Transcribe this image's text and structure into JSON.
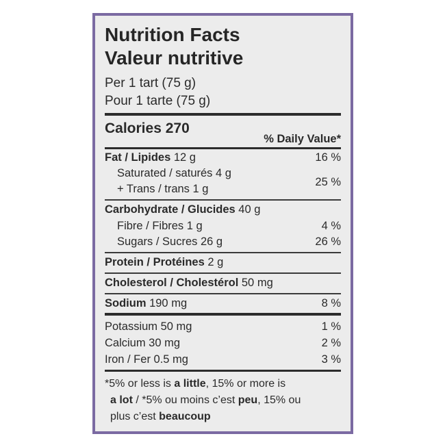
{
  "label": {
    "title_en": "Nutrition Facts",
    "title_fr": "Valeur nutritive",
    "serving_en": "Per 1 tart (75 g)",
    "serving_fr": "Pour 1 tarte (75 g)",
    "calories_label": "Calories 270",
    "daily_value_header": "% Daily Value*",
    "fat": {
      "name": "Fat / Lipides",
      "amount": " 12 g",
      "pct": "16 %"
    },
    "saturated": {
      "text": "Saturated / saturés 4 g"
    },
    "trans": {
      "text": "+ Trans / trans 1 g",
      "pct": "25 %"
    },
    "carbohydrate": {
      "name": "Carbohydrate / Glucides",
      "amount": " 40 g"
    },
    "fibre": {
      "text": "Fibre / Fibres 1 g",
      "pct": "4 %"
    },
    "sugars": {
      "text": "Sugars / Sucres 26 g",
      "pct": "26 %"
    },
    "protein": {
      "name": "Protein / Protéines",
      "amount": " 2 g"
    },
    "cholesterol": {
      "name": "Cholesterol / Cholestérol",
      "amount": " 50 mg"
    },
    "sodium": {
      "name": "Sodium",
      "amount": " 190 mg",
      "pct": "8 %"
    },
    "potassium": {
      "text": "Potassium 50 mg",
      "pct": "1 %"
    },
    "calcium": {
      "text": "Calcium 30 mg",
      "pct": "2 %"
    },
    "iron": {
      "text": "Iron / Fer 0.5 mg",
      "pct": "3 %"
    },
    "footnote": {
      "p1": "*5% or less is ",
      "b1": "a little",
      "p2": ", 15% or more is",
      "b2": "a lot",
      "p3": " / *5% ou moins c’est ",
      "b3": "peu",
      "p4": ", 15% ou",
      "p5": "plus c’est ",
      "b4": "beaucoup"
    }
  },
  "colors": {
    "frame": "#7b6aa2",
    "panel": "#ececec",
    "text": "#2a2a2a"
  }
}
